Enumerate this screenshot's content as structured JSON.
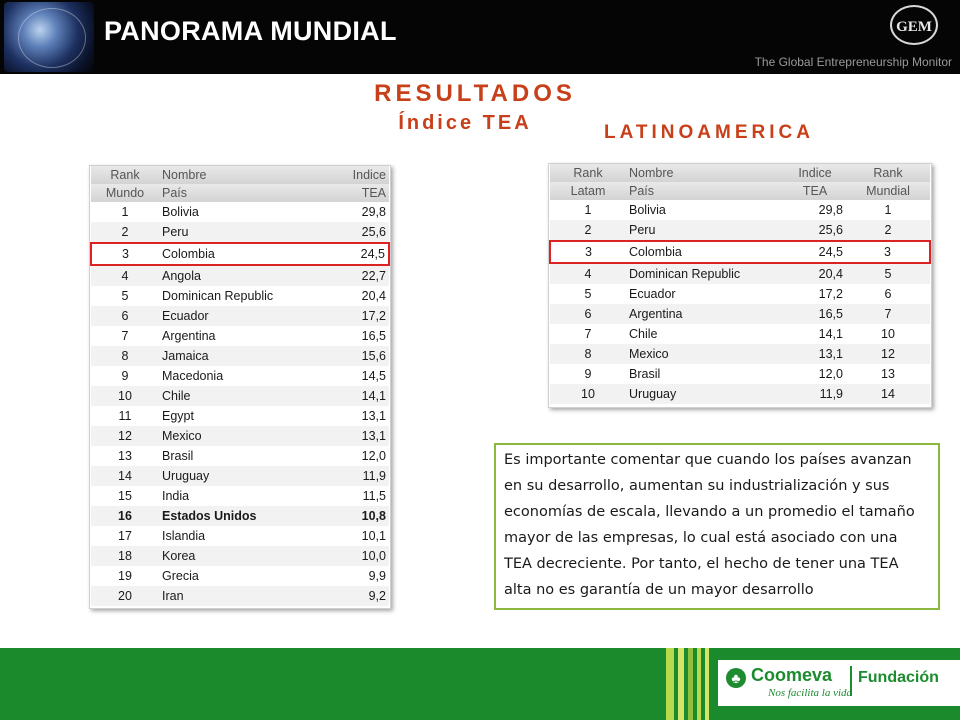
{
  "header": {
    "title": "PANORAMA  MUNDIAL",
    "gem_logo": "GEM",
    "gem_subtitle": "The Global Entrepreneurship Monitor"
  },
  "headings": {
    "results": "RESULTADOS",
    "index": "Índice TEA",
    "latam": "LATINOAMERICA"
  },
  "world_table": {
    "headers": [
      [
        "Rank",
        "Mundo"
      ],
      [
        "Nombre",
        "País"
      ],
      [
        "Indice",
        "TEA"
      ]
    ],
    "rows": [
      {
        "rank": "1",
        "country": "Bolivia",
        "tea": "29,8"
      },
      {
        "rank": "2",
        "country": "Peru",
        "tea": "25,6"
      },
      {
        "rank": "3",
        "country": "Colombia",
        "tea": "24,5"
      },
      {
        "rank": "4",
        "country": "Angola",
        "tea": "22,7"
      },
      {
        "rank": "5",
        "country": "Dominican Republic",
        "tea": "20,4"
      },
      {
        "rank": "6",
        "country": "Ecuador",
        "tea": "17,2"
      },
      {
        "rank": "7",
        "country": "Argentina",
        "tea": "16,5"
      },
      {
        "rank": "8",
        "country": "Jamaica",
        "tea": "15,6"
      },
      {
        "rank": "9",
        "country": "Macedonia",
        "tea": "14,5"
      },
      {
        "rank": "10",
        "country": "Chile",
        "tea": "14,1"
      },
      {
        "rank": "11",
        "country": "Egypt",
        "tea": "13,1"
      },
      {
        "rank": "12",
        "country": "Mexico",
        "tea": "13,1"
      },
      {
        "rank": "13",
        "country": "Brasil",
        "tea": "12,0"
      },
      {
        "rank": "14",
        "country": "Uruguay",
        "tea": "11,9"
      },
      {
        "rank": "15",
        "country": "India",
        "tea": "11,5"
      },
      {
        "rank": "16",
        "country": "Estados Unidos",
        "tea": "10,8"
      },
      {
        "rank": "17",
        "country": "Islandia",
        "tea": "10,1"
      },
      {
        "rank": "18",
        "country": "Korea",
        "tea": "10,0"
      },
      {
        "rank": "19",
        "country": "Grecia",
        "tea": "9,9"
      },
      {
        "rank": "20",
        "country": "Iran",
        "tea": "9,2"
      }
    ],
    "highlight_rank": "3",
    "bold_rank": "16"
  },
  "latam_table": {
    "headers": [
      [
        "Rank",
        "Latam"
      ],
      [
        "Nombre",
        "País"
      ],
      [
        "Indice",
        "TEA"
      ],
      [
        "Rank",
        "Mundial"
      ]
    ],
    "rows": [
      {
        "rank": "1",
        "country": "Bolivia",
        "tea": "29,8",
        "world": "1"
      },
      {
        "rank": "2",
        "country": "Peru",
        "tea": "25,6",
        "world": "2"
      },
      {
        "rank": "3",
        "country": "Colombia",
        "tea": "24,5",
        "world": "3"
      },
      {
        "rank": "4",
        "country": "Dominican Republic",
        "tea": "20,4",
        "world": "5"
      },
      {
        "rank": "5",
        "country": "Ecuador",
        "tea": "17,2",
        "world": "6"
      },
      {
        "rank": "6",
        "country": "Argentina",
        "tea": "16,5",
        "world": "7"
      },
      {
        "rank": "7",
        "country": "Chile",
        "tea": "14,1",
        "world": "10"
      },
      {
        "rank": "8",
        "country": "Mexico",
        "tea": "13,1",
        "world": "12"
      },
      {
        "rank": "9",
        "country": "Brasil",
        "tea": "12,0",
        "world": "13"
      },
      {
        "rank": "10",
        "country": "Uruguay",
        "tea": "11,9",
        "world": "14"
      }
    ],
    "highlight_rank": "3"
  },
  "note": {
    "text": "Es importante comentar que cuando los países avanzan en su desarrollo, aumentan su industrialización y sus economías de escala, llevando a un promedio el tamaño mayor de las empresas, lo cual está asociado con una TEA decreciente.  Por tanto, el hecho de tener una TEA alta no es garantía de un mayor desarrollo"
  },
  "footer": {
    "brand": "Coomeva",
    "slogan": "Nos facilita la vida",
    "fundacion": "Fundación",
    "colors": {
      "green": "#1a8a2c",
      "lime": "#a6c93a",
      "accent": "#c8401a"
    }
  }
}
